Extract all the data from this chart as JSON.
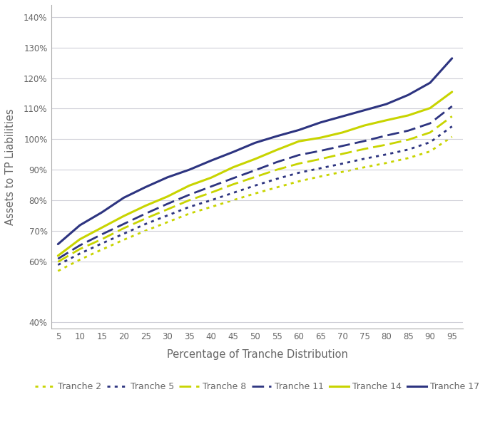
{
  "xlabel": "Percentage of Tranche Distribution",
  "ylabel": "Assets to TP Liabilities",
  "x": [
    5,
    10,
    15,
    20,
    25,
    30,
    35,
    40,
    45,
    50,
    55,
    60,
    65,
    70,
    75,
    80,
    85,
    90,
    95
  ],
  "ylim": [
    0.38,
    1.44
  ],
  "yticks": [
    0.4,
    0.6,
    0.7,
    0.8,
    0.9,
    1.0,
    1.1,
    1.2,
    1.3,
    1.4
  ],
  "series": {
    "Tranche 17": {
      "color": "#2d3480",
      "linestyle": "solid",
      "linewidth": 2.2,
      "values": [
        0.656,
        0.718,
        0.76,
        0.808,
        0.843,
        0.875,
        0.9,
        0.93,
        0.958,
        0.988,
        1.01,
        1.03,
        1.055,
        1.075,
        1.095,
        1.115,
        1.145,
        1.185,
        1.265
      ]
    },
    "Tranche 14": {
      "color": "#c8d400",
      "linestyle": "solid",
      "linewidth": 2.2,
      "values": [
        0.618,
        0.672,
        0.71,
        0.748,
        0.782,
        0.812,
        0.848,
        0.874,
        0.908,
        0.935,
        0.965,
        0.993,
        1.005,
        1.022,
        1.045,
        1.062,
        1.078,
        1.102,
        1.155
      ]
    },
    "Tranche 11": {
      "color": "#2d3480",
      "linestyle": "dashed",
      "linewidth": 2.0,
      "values": [
        0.608,
        0.652,
        0.688,
        0.722,
        0.756,
        0.788,
        0.818,
        0.845,
        0.872,
        0.898,
        0.925,
        0.948,
        0.962,
        0.978,
        0.994,
        1.012,
        1.028,
        1.052,
        1.108
      ]
    },
    "Tranche 8": {
      "color": "#c8d400",
      "linestyle": "dashed",
      "linewidth": 2.0,
      "values": [
        0.598,
        0.64,
        0.672,
        0.708,
        0.74,
        0.77,
        0.8,
        0.825,
        0.852,
        0.876,
        0.9,
        0.92,
        0.935,
        0.952,
        0.968,
        0.982,
        0.998,
        1.022,
        1.075
      ]
    },
    "Tranche 5": {
      "color": "#2d3480",
      "linestyle": "dotted",
      "linewidth": 2.0,
      "values": [
        0.588,
        0.625,
        0.658,
        0.69,
        0.722,
        0.75,
        0.778,
        0.8,
        0.824,
        0.848,
        0.87,
        0.89,
        0.905,
        0.92,
        0.936,
        0.95,
        0.966,
        0.99,
        1.042
      ]
    },
    "Tranche 2": {
      "color": "#c8d400",
      "linestyle": "dotted",
      "linewidth": 2.0,
      "values": [
        0.568,
        0.605,
        0.638,
        0.67,
        0.7,
        0.728,
        0.756,
        0.778,
        0.8,
        0.822,
        0.842,
        0.862,
        0.878,
        0.893,
        0.908,
        0.922,
        0.938,
        0.96,
        1.008
      ]
    }
  },
  "background_color": "#ffffff",
  "grid_color": "#d0d0d8",
  "axis_color": "#aaaaaa",
  "text_color": "#666666",
  "legend_order": [
    "Tranche 2",
    "Tranche 5",
    "Tranche 8",
    "Tranche 11",
    "Tranche 14",
    "Tranche 17"
  ]
}
